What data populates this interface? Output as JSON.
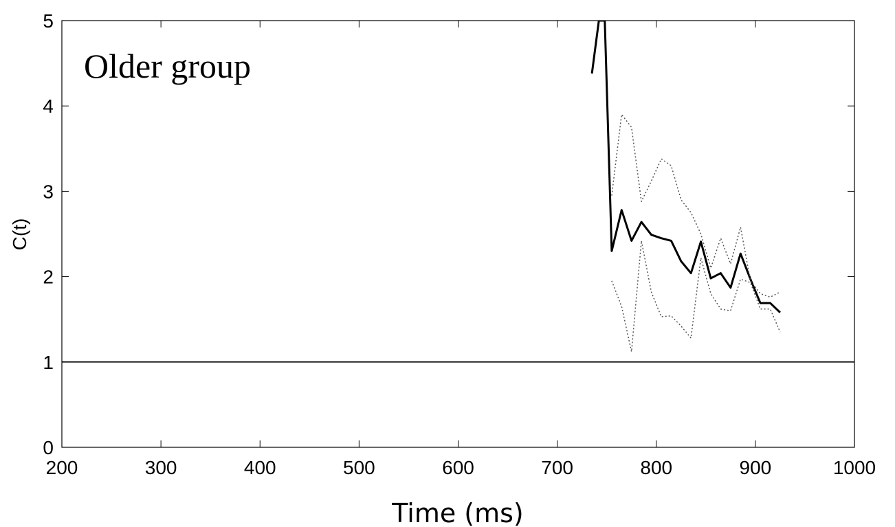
{
  "chart_data": {
    "type": "line",
    "title": "Older group",
    "xlabel": "Time (ms)",
    "ylabel": "C(t)",
    "xlim": [
      200,
      1000
    ],
    "ylim": [
      0,
      5
    ],
    "xticks": [
      200,
      300,
      400,
      500,
      600,
      700,
      800,
      900,
      1000
    ],
    "yticks": [
      0,
      1,
      2,
      3,
      4,
      5
    ],
    "reference_line": 1,
    "grid": false,
    "series": [
      {
        "style": "solid",
        "x": [
          735,
          742,
          748,
          755,
          765,
          775,
          785,
          795,
          805,
          815,
          825,
          835,
          845,
          855,
          865,
          875,
          885,
          895,
          905,
          915,
          925
        ],
        "y": [
          4.38,
          5.0,
          5.0,
          2.3,
          2.78,
          2.42,
          2.64,
          2.49,
          2.45,
          2.42,
          2.18,
          2.04,
          2.41,
          1.98,
          2.04,
          1.87,
          2.27,
          1.97,
          1.69,
          1.69,
          1.58
        ]
      },
      {
        "style": "dotted",
        "x": [
          755,
          765,
          775,
          785,
          795,
          805,
          815,
          825,
          835,
          845,
          855,
          865,
          875,
          885,
          895,
          905,
          915,
          925
        ],
        "y": [
          2.95,
          3.9,
          3.75,
          2.88,
          3.12,
          3.38,
          3.3,
          2.9,
          2.75,
          2.5,
          2.1,
          2.45,
          2.15,
          2.58,
          1.95,
          1.8,
          1.76,
          1.82
        ]
      },
      {
        "style": "dotted",
        "x": [
          755,
          765,
          775,
          785,
          795,
          805,
          815,
          825,
          835,
          845,
          855,
          865,
          875,
          885,
          895,
          905,
          915,
          925
        ],
        "y": [
          1.95,
          1.65,
          1.12,
          2.42,
          1.82,
          1.53,
          1.54,
          1.42,
          1.28,
          2.22,
          1.8,
          1.62,
          1.6,
          1.97,
          1.93,
          1.62,
          1.62,
          1.35
        ]
      }
    ]
  }
}
